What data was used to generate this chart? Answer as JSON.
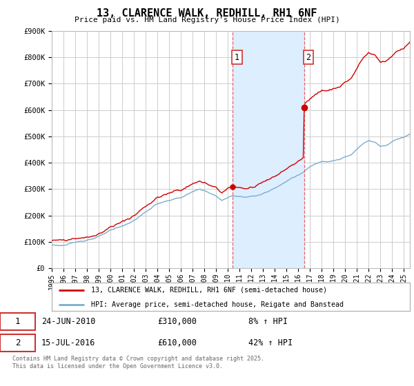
{
  "title": "13, CLARENCE WALK, REDHILL, RH1 6NF",
  "subtitle": "Price paid vs. HM Land Registry's House Price Index (HPI)",
  "ylim": [
    0,
    900000
  ],
  "yticks": [
    0,
    100000,
    200000,
    300000,
    400000,
    500000,
    600000,
    700000,
    800000,
    900000
  ],
  "ytick_labels": [
    "£0",
    "£100K",
    "£200K",
    "£300K",
    "£400K",
    "£500K",
    "£600K",
    "£700K",
    "£800K",
    "£900K"
  ],
  "xlim_start": 1995.0,
  "xlim_end": 2025.5,
  "sale1_year": 2010,
  "sale1_month": 6,
  "sale1_price": 310000,
  "sale1_label": "1",
  "sale1_text": "24-JUN-2010",
  "sale1_pct": "8%",
  "sale2_year": 2016,
  "sale2_month": 7,
  "sale2_price": 610000,
  "sale2_label": "2",
  "sale2_text": "15-JUL-2016",
  "sale2_pct": "42%",
  "legend_line1": "13, CLARENCE WALK, REDHILL, RH1 6NF (semi-detached house)",
  "legend_line2": "HPI: Average price, semi-detached house, Reigate and Banstead",
  "footer": "Contains HM Land Registry data © Crown copyright and database right 2025.\nThis data is licensed under the Open Government Licence v3.0.",
  "line_color_red": "#cc0000",
  "line_color_blue": "#7aadcf",
  "background_color": "#ffffff",
  "plot_bg_color": "#ffffff",
  "grid_color": "#cccccc",
  "shade_color": "#ddeeff",
  "dashed_color": "#ee5555"
}
